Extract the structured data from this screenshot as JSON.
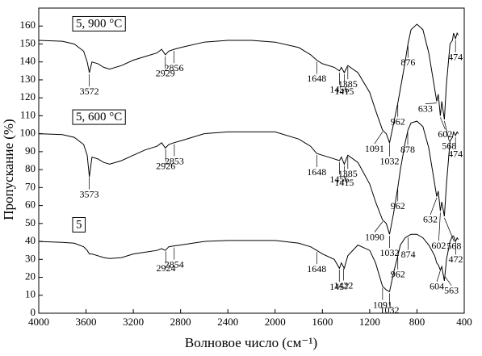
{
  "chart_data": {
    "type": "line",
    "xlabel": "Волновое число (см⁻¹)",
    "ylabel": "Пропускание (%)",
    "xlim": [
      4000,
      400
    ],
    "ylim": [
      0,
      170
    ],
    "xticks": [
      4000,
      3600,
      3200,
      2800,
      2400,
      2000,
      1600,
      1200,
      800,
      400
    ],
    "yticks": [
      0,
      10,
      20,
      30,
      40,
      50,
      60,
      70,
      80,
      90,
      100,
      110,
      120,
      130,
      140,
      150,
      160
    ],
    "x": [
      4000,
      3800,
      3700,
      3620,
      3590,
      3572,
      3550,
      3500,
      3450,
      3400,
      3300,
      3200,
      3100,
      3000,
      2960,
      2929,
      2900,
      2856,
      2800,
      2600,
      2400,
      2200,
      2000,
      1800,
      1700,
      1648,
      1600,
      1500,
      1456,
      1440,
      1415,
      1385,
      1300,
      1200,
      1150,
      1091,
      1060,
      1032,
      1000,
      962,
      940,
      900,
      876,
      850,
      800,
      750,
      700,
      650,
      633,
      620,
      602,
      590,
      568,
      550,
      520,
      500,
      490,
      474,
      460,
      450
    ],
    "series": [
      {
        "name": "5, 900 °C",
        "color": "#000000",
        "values": [
          152,
          151.5,
          150,
          146,
          140,
          134,
          140,
          139,
          137,
          136,
          138,
          141,
          143,
          145,
          147,
          144,
          146,
          147,
          148,
          151,
          152,
          152,
          151,
          148,
          144,
          141,
          139,
          137,
          135,
          137,
          134,
          138,
          134,
          123,
          113,
          102,
          100,
          95,
          105,
          117,
          125,
          140,
          150,
          158,
          161,
          158,
          145,
          125,
          118,
          122,
          110,
          118,
          108,
          128,
          150,
          152,
          156,
          153,
          156,
          155
        ],
        "peaks": [
          3572,
          2929,
          2856,
          1648,
          1456,
          1415,
          1385,
          1091,
          1032,
          962,
          876,
          633,
          602,
          568,
          474
        ]
      },
      {
        "name": "5, 600 °C",
        "color": "#000000",
        "values": [
          100,
          99.5,
          98,
          94,
          88,
          76,
          87,
          86,
          84,
          83,
          85,
          88,
          91,
          93,
          95,
          92,
          94,
          95,
          96,
          100,
          101,
          101,
          101,
          97,
          93,
          89,
          88,
          86,
          85,
          87,
          83,
          88,
          84,
          72,
          62,
          52,
          50,
          44,
          55,
          70,
          80,
          95,
          102,
          106,
          107,
          104,
          92,
          72,
          65,
          68,
          57,
          62,
          54,
          72,
          96,
          98,
          101,
          99,
          101,
          100
        ],
        "peaks": [
          3573,
          2926,
          2853,
          1648,
          1456,
          1415,
          1385,
          1090,
          1032,
          962,
          878,
          632,
          602,
          568,
          474
        ]
      },
      {
        "name": "5",
        "color": "#000000",
        "values": [
          40,
          39.5,
          39,
          37,
          35,
          33,
          33,
          32,
          31,
          30.5,
          31,
          33,
          34,
          35,
          36,
          35,
          37,
          37.5,
          38,
          40,
          40.5,
          40.5,
          40.5,
          39,
          37,
          35,
          33,
          30,
          25,
          28,
          25,
          32,
          38,
          35,
          28,
          15,
          13,
          12,
          22,
          32,
          38,
          42,
          43,
          44,
          44,
          42,
          38,
          32,
          28,
          27,
          24,
          26,
          18,
          30,
          40,
          43,
          43,
          40,
          42,
          41
        ],
        "peaks": [
          2924,
          2854,
          1648,
          1457,
          1422,
          1091,
          1032,
          962,
          874,
          604,
          563,
          472
        ]
      }
    ]
  }
}
